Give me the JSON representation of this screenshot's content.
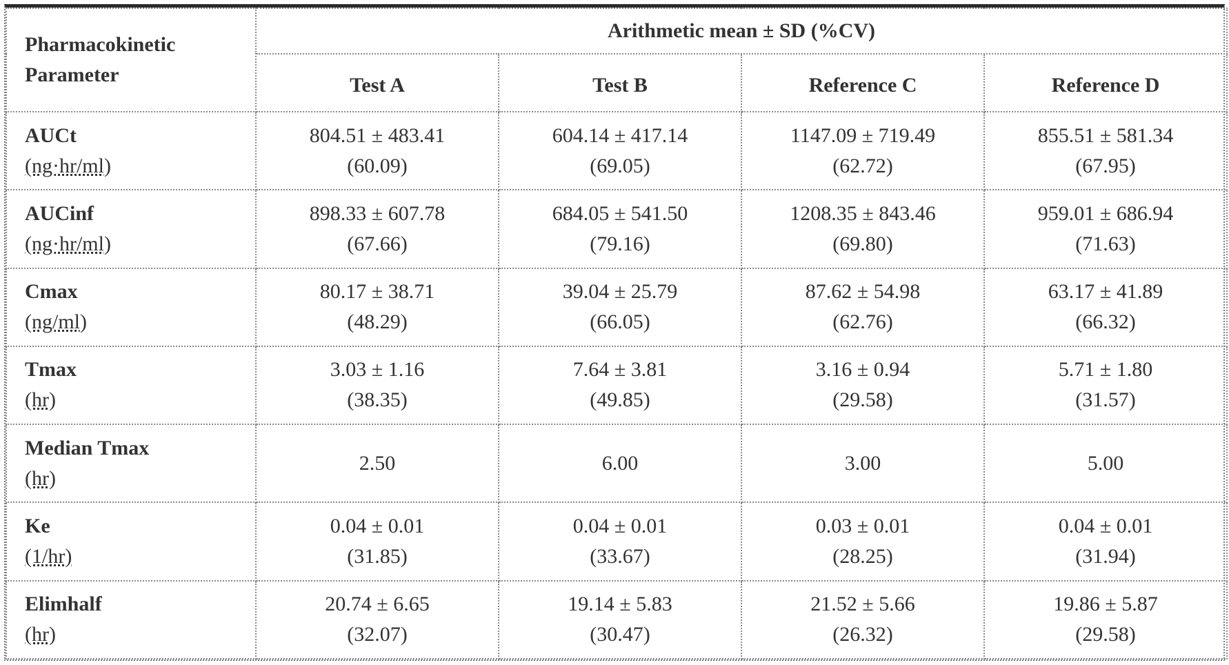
{
  "table": {
    "param_header": [
      "Pharmacokinetic",
      "Parameter"
    ],
    "group_header": "Arithmetic mean ± SD (%CV)",
    "columns": [
      "Test A",
      "Test B",
      "Reference C",
      "Reference D"
    ],
    "rows": [
      {
        "name": "AUCt",
        "unit": "(ng·hr/ml)",
        "values": [
          {
            "mean_sd": "804.51 ± 483.41",
            "cv": "(60.09)"
          },
          {
            "mean_sd": "604.14 ± 417.14",
            "cv": "(69.05)"
          },
          {
            "mean_sd": "1147.09 ± 719.49",
            "cv": "(62.72)"
          },
          {
            "mean_sd": "855.51 ± 581.34",
            "cv": "(67.95)"
          }
        ]
      },
      {
        "name": "AUCinf",
        "unit": "(ng·hr/ml)",
        "values": [
          {
            "mean_sd": "898.33 ± 607.78",
            "cv": "(67.66)"
          },
          {
            "mean_sd": "684.05 ± 541.50",
            "cv": "(79.16)"
          },
          {
            "mean_sd": "1208.35 ± 843.46",
            "cv": "(69.80)"
          },
          {
            "mean_sd": "959.01 ± 686.94",
            "cv": "(71.63)"
          }
        ]
      },
      {
        "name": "Cmax",
        "unit": "(ng/ml)",
        "values": [
          {
            "mean_sd": "80.17 ± 38.71",
            "cv": "(48.29)"
          },
          {
            "mean_sd": "39.04 ± 25.79",
            "cv": "(66.05)"
          },
          {
            "mean_sd": "87.62 ± 54.98",
            "cv": "(62.76)"
          },
          {
            "mean_sd": "63.17 ± 41.89",
            "cv": "(66.32)"
          }
        ]
      },
      {
        "name": "Tmax",
        "unit": "(hr)",
        "values": [
          {
            "mean_sd": "3.03 ± 1.16",
            "cv": "(38.35)"
          },
          {
            "mean_sd": "7.64 ± 3.81",
            "cv": "(49.85)"
          },
          {
            "mean_sd": "3.16 ± 0.94",
            "cv": "(29.58)"
          },
          {
            "mean_sd": "5.71 ± 1.80",
            "cv": "(31.57)"
          }
        ]
      },
      {
        "name": "Median Tmax",
        "unit": "(hr)",
        "values": [
          {
            "mean_sd": "2.50",
            "cv": ""
          },
          {
            "mean_sd": "6.00",
            "cv": ""
          },
          {
            "mean_sd": "3.00",
            "cv": ""
          },
          {
            "mean_sd": "5.00",
            "cv": ""
          }
        ]
      },
      {
        "name": "Ke",
        "unit": "(1/hr)",
        "values": [
          {
            "mean_sd": "0.04 ± 0.01",
            "cv": "(31.85)"
          },
          {
            "mean_sd": "0.04 ± 0.01",
            "cv": "(33.67)"
          },
          {
            "mean_sd": "0.03 ± 0.01",
            "cv": "(28.25)"
          },
          {
            "mean_sd": "0.04 ± 0.01",
            "cv": "(31.94)"
          }
        ]
      },
      {
        "name": "Elimhalf",
        "unit": "(hr)",
        "values": [
          {
            "mean_sd": "20.74 ± 6.65",
            "cv": "(32.07)"
          },
          {
            "mean_sd": "19.14 ± 5.83",
            "cv": "(30.47)"
          },
          {
            "mean_sd": "21.52 ± 5.66",
            "cv": "(26.32)"
          },
          {
            "mean_sd": "19.86 ± 5.87",
            "cv": "(29.58)"
          }
        ]
      }
    ]
  }
}
